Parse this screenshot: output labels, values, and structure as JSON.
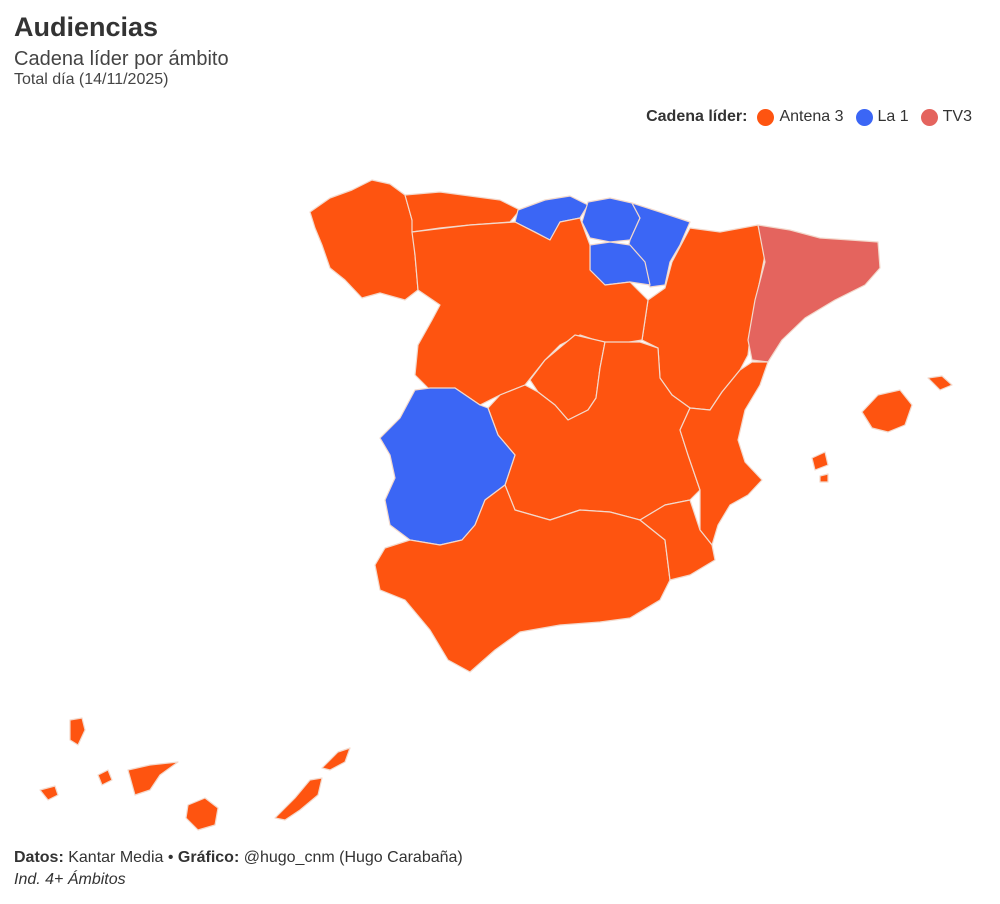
{
  "header": {
    "title": "Audiencias",
    "subtitle": "Cadena líder por ámbito",
    "date_line": "Total día (14/11/2025)"
  },
  "legend": {
    "title": "Cadena líder:",
    "items": [
      {
        "label": "Antena 3",
        "color": "#fe5410"
      },
      {
        "label": "La 1",
        "color": "#3b66f5"
      },
      {
        "label": "TV3",
        "color": "#e4645e"
      }
    ]
  },
  "map_data": {
    "type": "choropleth",
    "colors": {
      "Antena 3": "#fe5410",
      "La 1": "#3b66f5",
      "TV3": "#e4645e"
    },
    "regions": [
      {
        "id": "galicia",
        "leader": "Antena 3"
      },
      {
        "id": "asturias",
        "leader": "Antena 3"
      },
      {
        "id": "cantabria",
        "leader": "La 1"
      },
      {
        "id": "pais-vasco",
        "leader": "La 1"
      },
      {
        "id": "navarra",
        "leader": "La 1"
      },
      {
        "id": "la-rioja",
        "leader": "La 1"
      },
      {
        "id": "aragon",
        "leader": "Antena 3"
      },
      {
        "id": "cataluna",
        "leader": "TV3"
      },
      {
        "id": "castilla-y-leon",
        "leader": "Antena 3"
      },
      {
        "id": "madrid",
        "leader": "Antena 3"
      },
      {
        "id": "castilla-la-mancha",
        "leader": "Antena 3"
      },
      {
        "id": "valencia",
        "leader": "Antena 3"
      },
      {
        "id": "extremadura",
        "leader": "La 1"
      },
      {
        "id": "andalucia",
        "leader": "Antena 3"
      },
      {
        "id": "murcia",
        "leader": "Antena 3"
      },
      {
        "id": "baleares",
        "leader": "Antena 3"
      },
      {
        "id": "canarias",
        "leader": "Antena 3"
      }
    ]
  },
  "footer": {
    "source_label": "Datos:",
    "source_value": "Kantar Media",
    "separator": "•",
    "graphic_label": "Gráfico:",
    "graphic_value": "@hugo_cnm (Hugo Carabaña)",
    "note": "Ind. 4+ Ámbitos"
  }
}
